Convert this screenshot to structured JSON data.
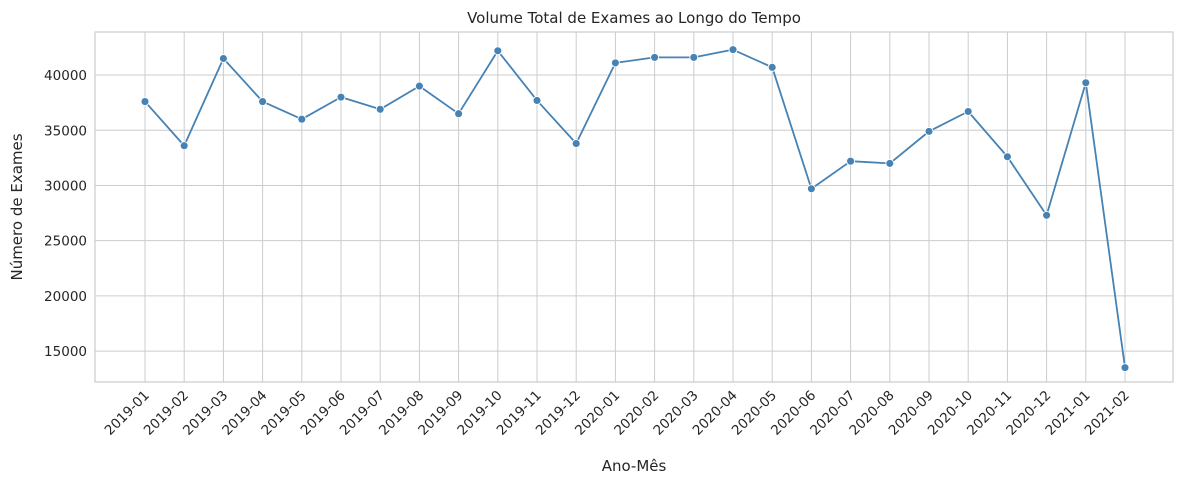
{
  "chart_data": {
    "type": "line",
    "title": "Volume Total de Exames ao Longo do Tempo",
    "xlabel": "Ano-Mês",
    "ylabel": "Número de Exames",
    "categories": [
      "2019-01",
      "2019-02",
      "2019-03",
      "2019-04",
      "2019-05",
      "2019-06",
      "2019-07",
      "2019-08",
      "2019-09",
      "2019-10",
      "2019-11",
      "2019-12",
      "2020-01",
      "2020-02",
      "2020-03",
      "2020-04",
      "2020-05",
      "2020-06",
      "2020-07",
      "2020-08",
      "2020-09",
      "2020-10",
      "2020-11",
      "2020-12",
      "2021-01",
      "2021-02"
    ],
    "series": [
      {
        "values": [
          37600,
          33600,
          41500,
          37600,
          36000,
          38000,
          36900,
          39000,
          36500,
          42200,
          37700,
          33800,
          41100,
          41600,
          41600,
          42300,
          40700,
          29700,
          32200,
          32000,
          34900,
          36700,
          32600,
          27300,
          39300,
          13500
        ]
      }
    ],
    "yticks": [
      15000,
      20000,
      25000,
      30000,
      35000,
      40000
    ],
    "ylim": [
      12200,
      43900
    ],
    "grid": true,
    "legend": "none",
    "line_color": "#4682b4"
  }
}
